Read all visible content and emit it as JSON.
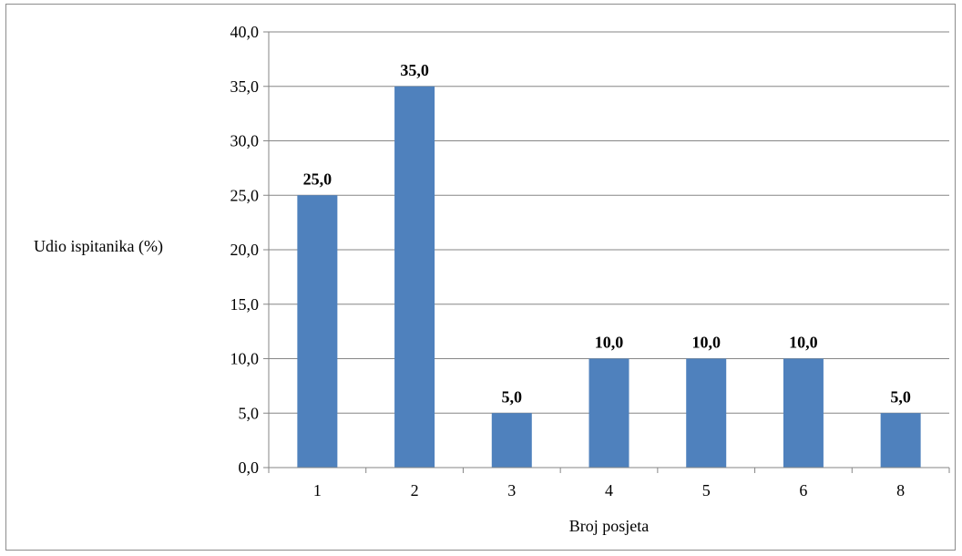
{
  "chart_data": {
    "type": "bar",
    "categories": [
      "1",
      "2",
      "3",
      "4",
      "5",
      "6",
      "8"
    ],
    "values": [
      25.0,
      35.0,
      5.0,
      10.0,
      10.0,
      10.0,
      5.0
    ],
    "value_labels": [
      "25,0",
      "35,0",
      "5,0",
      "10,0",
      "10,0",
      "10,0",
      "5,0"
    ],
    "xlabel": "Broj posjeta",
    "ylabel": "Udio ispitanika (%)",
    "ylim": [
      0,
      40
    ],
    "yticks": [
      "0,0",
      "5,0",
      "10,0",
      "15,0",
      "20,0",
      "25,0",
      "30,0",
      "35,0",
      "40,0"
    ],
    "grid": true,
    "bar_color": "#4f81bd",
    "grid_color": "#868686",
    "legend": "none"
  }
}
